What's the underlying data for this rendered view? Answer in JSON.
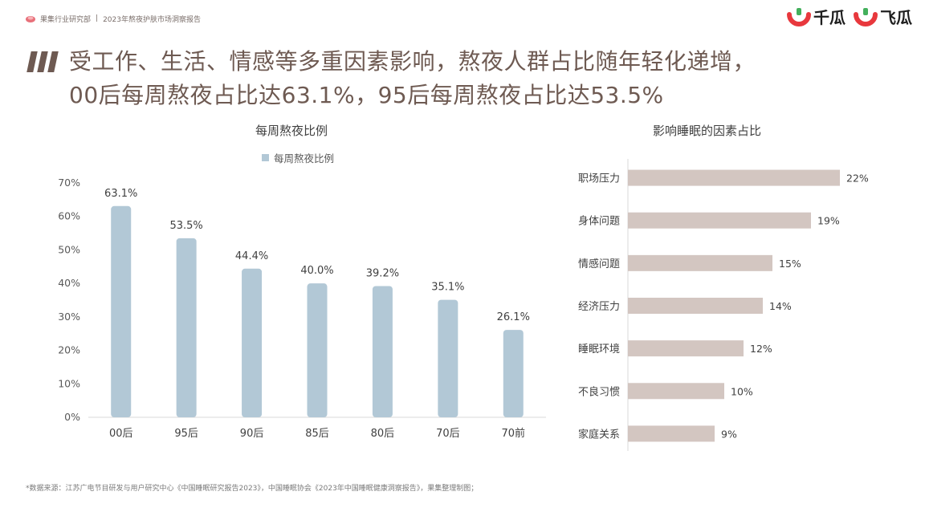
{
  "header": {
    "report_org": "果集行业研究部",
    "separator": "|",
    "report_name": "2023年熬夜护肤市场洞察报告"
  },
  "brands": [
    {
      "name": "千瓜",
      "icon": "qiangua-logo-icon"
    },
    {
      "name": "飞瓜",
      "icon": "feigua-logo-icon"
    }
  ],
  "headline": {
    "line1": "受工作、生活、情感等多重因素影响，熬夜人群占比随年轻化递增，",
    "line2": "00后每周熬夜占比达63.1%，95后每周熬夜占比达53.5%"
  },
  "footnote": "*数据来源：江苏广电节目研发与用户研究中心《中国睡眠研究报告2023》，中国睡眠协会《2023年中国睡眠健康洞察报告》，果集整理制图；",
  "colors": {
    "bar_left": "#b2c8d6",
    "bar_right": "#d3c6c1",
    "title_brown": "#6e5a52",
    "brand_red": "#e8383d"
  },
  "chart_data": [
    {
      "type": "bar",
      "title": "每周熬夜比例",
      "categories": [
        "00后",
        "95后",
        "90后",
        "85后",
        "80后",
        "70后",
        "70前"
      ],
      "series": [
        {
          "name": "每周熬夜比例",
          "values": [
            63.1,
            53.5,
            44.4,
            40.0,
            39.2,
            35.1,
            26.1
          ]
        }
      ],
      "data_labels": [
        "63.1%",
        "53.5%",
        "44.4%",
        "40.0%",
        "39.2%",
        "35.1%",
        "26.1%"
      ],
      "ytick_labels": [
        "0%",
        "10%",
        "20%",
        "30%",
        "40%",
        "50%",
        "60%",
        "70%"
      ],
      "ylim": [
        0,
        70
      ],
      "grid": false,
      "legend": "top-center"
    },
    {
      "type": "bar",
      "orientation": "horizontal",
      "title": "影响睡眠的因素占比",
      "categories": [
        "职场压力",
        "身体问题",
        "情感问题",
        "经济压力",
        "睡眠环境",
        "不良习惯",
        "家庭关系"
      ],
      "values": [
        22,
        19,
        15,
        14,
        12,
        10,
        9
      ],
      "data_labels": [
        "22%",
        "19%",
        "15%",
        "14%",
        "12%",
        "10%",
        "9%"
      ],
      "xlim": [
        0,
        22
      ],
      "grid": false
    }
  ]
}
